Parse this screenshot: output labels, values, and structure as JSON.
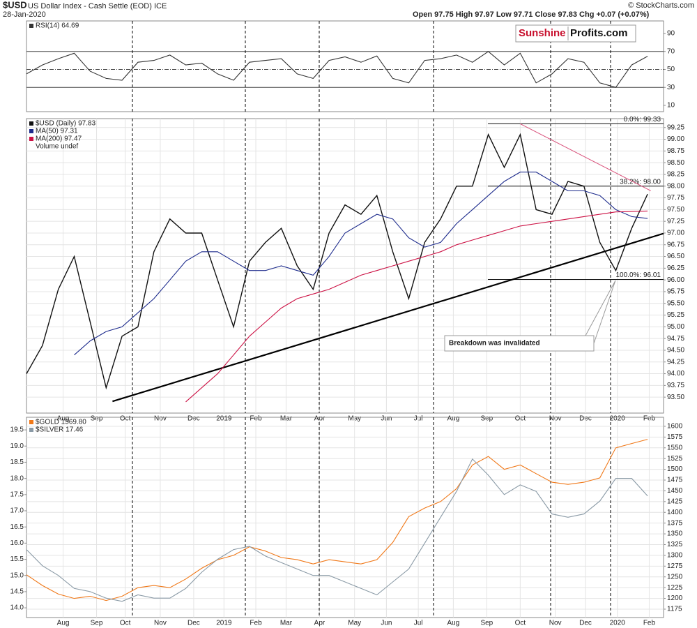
{
  "header": {
    "symbol": "$USD",
    "name": "US Dollar Index - Cash Settle (EOD) ICE",
    "date": "28-Jan-2020",
    "quote": "Open 97.75  High 97.97  Low 97.71  Close 97.83  Chg +0.07 (+0.07%)",
    "credit": "© StockCharts.com",
    "logo_a": "Sunshine",
    "logo_b": "Profits.com"
  },
  "chart_data": [
    {
      "type": "line",
      "xlim": [
        0,
        40
      ],
      "ylim": [
        3,
        104
      ],
      "yticks": [
        10,
        30,
        50,
        70,
        90
      ],
      "reference_lines": [
        30,
        50,
        70
      ],
      "series": [
        {
          "name": "RSI(14) 64.69",
          "color": "#333333",
          "values": [
            45,
            55,
            62,
            68,
            48,
            40,
            38,
            58,
            60,
            66,
            55,
            57,
            45,
            38,
            58,
            60,
            62,
            45,
            40,
            60,
            64,
            58,
            65,
            40,
            35,
            60,
            62,
            66,
            58,
            70,
            55,
            68,
            35,
            45,
            62,
            58,
            35,
            30,
            55,
            64.69
          ]
        }
      ]
    },
    {
      "type": "line",
      "xlim": [
        0,
        40
      ],
      "ylim": [
        93.16,
        99.44
      ],
      "grid": true,
      "yticks": [
        {
          "value": 93.5,
          "label": "93.50"
        },
        {
          "value": 93.75,
          "label": "93.75"
        },
        {
          "value": 94,
          "label": "94.00"
        },
        {
          "value": 94.25,
          "label": "94.25"
        },
        {
          "value": 94.5,
          "label": "94.50"
        },
        {
          "value": 94.75,
          "label": "94.75"
        },
        {
          "value": 95,
          "label": "95.00"
        },
        {
          "value": 95.25,
          "label": "95.25"
        },
        {
          "value": 95.5,
          "label": "95.50"
        },
        {
          "value": 95.75,
          "label": "95.75"
        },
        {
          "value": 96,
          "label": "96.00"
        },
        {
          "value": 96.25,
          "label": "96.25"
        },
        {
          "value": 96.5,
          "label": "96.50"
        },
        {
          "value": 96.75,
          "label": "96.75"
        },
        {
          "value": 97,
          "label": "97.00"
        },
        {
          "value": 97.25,
          "label": "97.25"
        },
        {
          "value": 97.5,
          "label": "97.50"
        },
        {
          "value": 97.75,
          "label": "97.75"
        },
        {
          "value": 98,
          "label": "98.00"
        },
        {
          "value": 98.25,
          "label": "98.25"
        },
        {
          "value": 98.5,
          "label": "98.50"
        },
        {
          "value": 98.75,
          "label": "98.75"
        },
        {
          "value": 99,
          "label": "99.00"
        },
        {
          "value": 99.25,
          "label": "99.25"
        }
      ],
      "xticks": [
        {
          "value": 2.3,
          "label": "Aug"
        },
        {
          "value": 4.4,
          "label": "Sep"
        },
        {
          "value": 6.2,
          "label": "Oct"
        },
        {
          "value": 8.4,
          "label": "Nov"
        },
        {
          "value": 10.5,
          "label": "Dec"
        },
        {
          "value": 12.4,
          "label": "2019"
        },
        {
          "value": 14.4,
          "label": "Feb"
        },
        {
          "value": 16.3,
          "label": "Mar"
        },
        {
          "value": 18.4,
          "label": "Apr"
        },
        {
          "value": 20.6,
          "label": "May"
        },
        {
          "value": 22.6,
          "label": "Jun"
        },
        {
          "value": 24.6,
          "label": "Jul"
        },
        {
          "value": 26.8,
          "label": "Aug"
        },
        {
          "value": 28.9,
          "label": "Sep"
        },
        {
          "value": 31.0,
          "label": "Oct"
        },
        {
          "value": 33.2,
          "label": "Nov"
        },
        {
          "value": 35.1,
          "label": "Dec"
        },
        {
          "value": 37.1,
          "label": "2020"
        },
        {
          "value": 39.1,
          "label": "Feb"
        }
      ],
      "series": [
        {
          "name": "$USD (Daily) 97.83",
          "color": "#111111",
          "values": [
            94.0,
            94.6,
            95.8,
            96.5,
            95.1,
            93.7,
            94.8,
            95.0,
            96.6,
            97.3,
            97.0,
            97.0,
            96.0,
            95.0,
            96.4,
            96.8,
            97.1,
            96.3,
            95.8,
            97.0,
            97.6,
            97.4,
            97.8,
            96.6,
            95.6,
            96.8,
            97.3,
            98.0,
            98.0,
            99.1,
            98.4,
            99.1,
            97.5,
            97.4,
            98.1,
            98.0,
            96.8,
            96.2,
            97.1,
            97.83
          ]
        },
        {
          "name": "MA(50) 97.31",
          "color": "#1c2a8c",
          "values": [
            null,
            null,
            null,
            94.4,
            94.7,
            94.9,
            95.0,
            95.3,
            95.6,
            96.0,
            96.4,
            96.6,
            96.6,
            96.4,
            96.2,
            96.2,
            96.3,
            96.2,
            96.1,
            96.5,
            97.0,
            97.2,
            97.4,
            97.3,
            96.9,
            96.7,
            96.8,
            97.2,
            97.5,
            97.8,
            98.1,
            98.3,
            98.3,
            98.1,
            97.9,
            97.9,
            97.8,
            97.5,
            97.35,
            97.31
          ]
        },
        {
          "name": "MA(200) 97.47",
          "color": "#cc1144",
          "values": [
            null,
            null,
            null,
            null,
            null,
            null,
            null,
            null,
            null,
            null,
            93.4,
            93.7,
            94.0,
            94.4,
            94.8,
            95.1,
            95.4,
            95.6,
            95.7,
            95.8,
            95.95,
            96.1,
            96.2,
            96.3,
            96.4,
            96.5,
            96.6,
            96.75,
            96.85,
            96.95,
            97.05,
            97.15,
            97.2,
            97.25,
            97.3,
            97.35,
            97.4,
            97.45,
            97.46,
            97.47
          ]
        }
      ],
      "legend_note": "Volume undef",
      "fib_levels": [
        {
          "value": 99.33,
          "label": "0.0%: 99.33"
        },
        {
          "value": 98.0,
          "label": "38.2%: 98.00"
        },
        {
          "value": 96.01,
          "label": "100.0%: 96.01"
        }
      ],
      "trend_lines": [
        {
          "color": "#000000",
          "x": [
            5.4,
            40
          ],
          "y": [
            93.41,
            96.99
          ]
        },
        {
          "color": "#d9507a",
          "x": [
            31.0,
            39.2
          ],
          "y": [
            99.33,
            97.9
          ]
        }
      ],
      "annotation": "Breakdown was invalidated"
    },
    {
      "type": "line",
      "xlim": [
        0,
        40
      ],
      "ylim": [
        1155.5,
        1621
      ],
      "y2lim": [
        13.7,
        19.89
      ],
      "grid": true,
      "yticks": [
        1175,
        1200,
        1225,
        1250,
        1275,
        1300,
        1325,
        1350,
        1375,
        1400,
        1425,
        1450,
        1475,
        1500,
        1525,
        1550,
        1575,
        1600
      ],
      "y2ticks": [
        {
          "value": 14,
          "label": "14.0"
        },
        14.5,
        {
          "value": 15,
          "label": "15.0"
        },
        15.5,
        {
          "value": 16,
          "label": "16.0"
        },
        16.5,
        {
          "value": 17,
          "label": "17.0"
        },
        17.5,
        {
          "value": 18,
          "label": "18.0"
        },
        18.5,
        {
          "value": 19,
          "label": "19.0"
        },
        19.5
      ],
      "xticks": [
        {
          "value": 2.3,
          "label": "Aug"
        },
        {
          "value": 4.4,
          "label": "Sep"
        },
        {
          "value": 6.2,
          "label": "Oct"
        },
        {
          "value": 8.4,
          "label": "Nov"
        },
        {
          "value": 10.5,
          "label": "Dec"
        },
        {
          "value": 12.4,
          "label": "2019"
        },
        {
          "value": 14.4,
          "label": "Feb"
        },
        {
          "value": 16.3,
          "label": "Mar"
        },
        {
          "value": 18.4,
          "label": "Apr"
        },
        {
          "value": 20.6,
          "label": "May"
        },
        {
          "value": 22.6,
          "label": "Jun"
        },
        {
          "value": 24.6,
          "label": "Jul"
        },
        {
          "value": 26.8,
          "label": "Aug"
        },
        {
          "value": 28.9,
          "label": "Sep"
        },
        {
          "value": 31.0,
          "label": "Oct"
        },
        {
          "value": 33.2,
          "label": "Nov"
        },
        {
          "value": 35.1,
          "label": "Dec"
        },
        {
          "value": 37.1,
          "label": "2020"
        },
        {
          "value": 39.1,
          "label": "Feb"
        }
      ],
      "series": [
        {
          "name": "$GOLD 1569.80",
          "color": "#f07818",
          "values": [
            1255,
            1230,
            1210,
            1200,
            1205,
            1195,
            1205,
            1225,
            1230,
            1225,
            1245,
            1270,
            1290,
            1300,
            1320,
            1310,
            1295,
            1290,
            1280,
            1290,
            1285,
            1280,
            1290,
            1330,
            1390,
            1410,
            1425,
            1455,
            1510,
            1530,
            1500,
            1510,
            1490,
            1470,
            1465,
            1470,
            1480,
            1550,
            1560,
            1569.8
          ]
        },
        {
          "name": "$SILVER 17.46",
          "color": "#8a9aa6",
          "axis": "y2",
          "values": [
            15.8,
            15.3,
            15.0,
            14.6,
            14.5,
            14.3,
            14.2,
            14.4,
            14.3,
            14.3,
            14.6,
            15.1,
            15.5,
            15.8,
            15.9,
            15.6,
            15.4,
            15.2,
            15.0,
            15.0,
            14.8,
            14.6,
            14.4,
            14.8,
            15.2,
            16.0,
            16.8,
            17.6,
            18.6,
            18.1,
            17.5,
            17.8,
            17.6,
            16.9,
            16.8,
            16.9,
            17.3,
            18.0,
            18.0,
            17.46
          ]
        }
      ]
    }
  ]
}
